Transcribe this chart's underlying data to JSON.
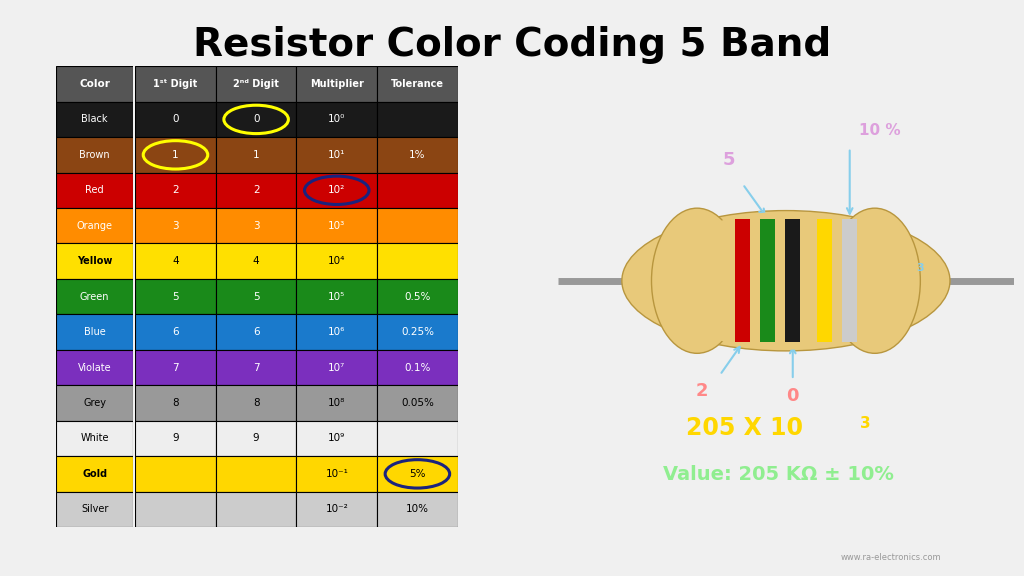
{
  "title": "Resistor Color Coding 5 Band",
  "title_fontsize": 28,
  "bg_color": "#f0f0f0",
  "table_bg": "#f0f0f0",
  "header_bg": "#555555",
  "table_colors": {
    "Black": "#1a1a1a",
    "Brown": "#8B4513",
    "Red": "#cc0000",
    "Orange": "#FF8C00",
    "Yellow": "#FFE000",
    "Green": "#1a8a1a",
    "Blue": "#1a7acc",
    "Violate": "#7B2FBE",
    "Grey": "#999999",
    "White": "#eeeeee",
    "Gold": "#FFD700",
    "Silver": "#CCCCCC"
  },
  "table_text_colors": {
    "Black": "#ffffff",
    "Brown": "#ffffff",
    "Red": "#ffffff",
    "Orange": "#ffffff",
    "Yellow": "#000000",
    "Green": "#ffffff",
    "Blue": "#ffffff",
    "Violate": "#ffffff",
    "Grey": "#000000",
    "White": "#000000",
    "Gold": "#000000",
    "Silver": "#000000"
  },
  "rows": [
    "Black",
    "Brown",
    "Red",
    "Orange",
    "Yellow",
    "Green",
    "Blue",
    "Violate",
    "Grey",
    "White",
    "Gold",
    "Silver"
  ],
  "digit1": [
    "0",
    "1",
    "2",
    "3",
    "4",
    "5",
    "6",
    "7",
    "8",
    "9",
    "",
    ""
  ],
  "digit2": [
    "0",
    "1",
    "2",
    "3",
    "4",
    "5",
    "6",
    "7",
    "8",
    "9",
    "",
    ""
  ],
  "multiplier": [
    "10⁰",
    "10¹",
    "10²",
    "10³",
    "10⁴",
    "10⁵",
    "10⁶",
    "10⁷",
    "10⁸",
    "10⁹",
    "10⁻¹",
    "10⁻²"
  ],
  "tolerance": [
    "",
    "1%",
    "",
    "",
    "",
    "0.5%",
    "0.25%",
    "0.1%",
    "0.05%",
    "",
    "5%",
    "10%"
  ],
  "resistor_bg": "#3a3a3a",
  "body_color": "#E8C97A",
  "lead_color": "#999999",
  "band_colors": [
    "#cc0000",
    "#1a8a1a",
    "#1a1a1a",
    "#FFD700",
    "#CCCCCC"
  ],
  "arrow_color": "#87CEEB",
  "label_color_2": "#FF8888",
  "label_color_5": "#DDA0DD",
  "label_color_0": "#FF8888",
  "label_color_103": "#87CEEB",
  "label_color_10pct": "#DDA0DD",
  "formula_color": "#FFD700",
  "value_color": "#90EE90",
  "watermark": "www.ra-electronics.com"
}
